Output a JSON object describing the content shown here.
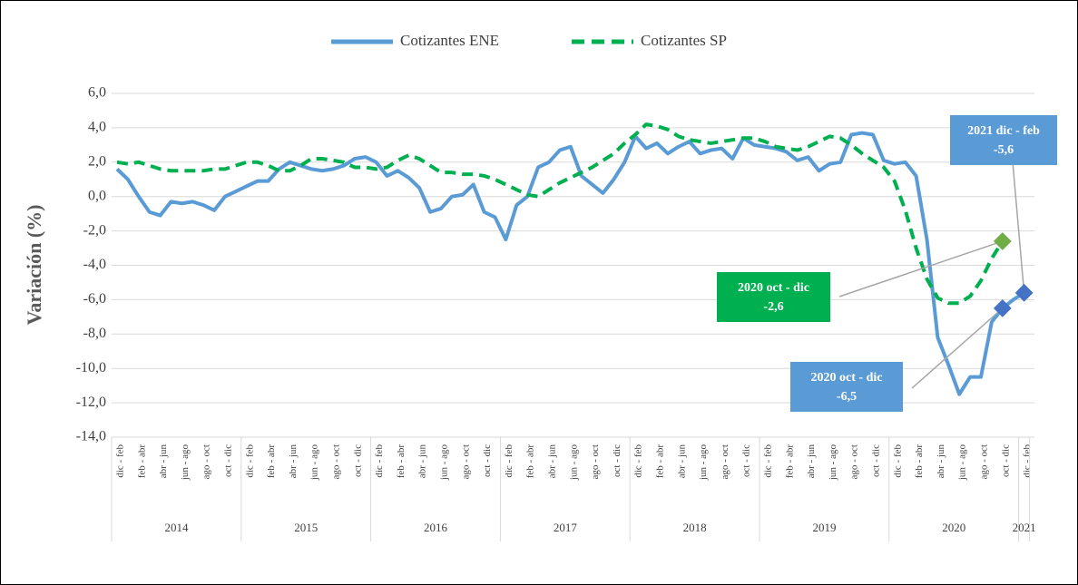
{
  "chart_data": {
    "type": "line",
    "y_label": "Variación (%)",
    "categories": [
      "dic - feb",
      null,
      "feb - abr",
      null,
      "abr - jun",
      null,
      "jun - ago",
      null,
      "ago - oct",
      null,
      "oct - dic",
      null,
      "dic - feb",
      null,
      "feb - abr",
      null,
      "abr - jun",
      null,
      "jun - ago",
      null,
      "ago - oct",
      null,
      "oct - dic",
      null,
      "dic - feb",
      null,
      "feb - abr",
      null,
      "abr - jun",
      null,
      "jun - ago",
      null,
      "ago - oct",
      null,
      "oct - dic",
      null,
      "dic - feb",
      null,
      "feb - abr",
      null,
      "abr - jun",
      null,
      "jun - ago",
      null,
      "ago - oct",
      null,
      "oct - dic",
      null,
      "dic - feb",
      null,
      "feb - abr",
      null,
      "abr - jun",
      null,
      "jun - ago",
      null,
      "ago - oct",
      null,
      "oct - dic",
      null,
      "dic - feb",
      null,
      "feb - abr",
      null,
      "abr - jun",
      null,
      "jun - ago",
      null,
      "ago - oct",
      null,
      "oct - dic",
      null,
      "dic - feb",
      null,
      "feb - abr",
      null,
      "abr - jun",
      null,
      "jun - ago",
      null,
      "ago - oct",
      null,
      "oct - dic",
      null,
      "dic - feb"
    ],
    "x_groups": [
      "2014",
      "2015",
      "2016",
      "2017",
      "2018",
      "2019",
      "2020",
      "2021"
    ],
    "series": [
      {
        "name": "Cotizantes ENE",
        "color": "#5b9bd5",
        "dash": false,
        "values": [
          1.6,
          1.0,
          0.0,
          -0.9,
          -1.1,
          -0.3,
          -0.4,
          -0.3,
          -0.5,
          -0.8,
          0.0,
          0.3,
          0.6,
          0.9,
          0.9,
          1.6,
          2.0,
          1.8,
          1.6,
          1.5,
          1.6,
          1.8,
          2.2,
          2.3,
          2.0,
          1.2,
          1.5,
          1.1,
          0.5,
          -0.9,
          -0.7,
          0.0,
          0.1,
          0.7,
          -0.9,
          -1.2,
          -2.5,
          -0.5,
          0.0,
          1.7,
          2.0,
          2.7,
          2.9,
          1.2,
          0.7,
          0.2,
          1.0,
          2.0,
          3.5,
          2.8,
          3.1,
          2.5,
          2.9,
          3.2,
          2.5,
          2.7,
          2.8,
          2.2,
          3.4,
          3.0,
          2.9,
          2.8,
          2.6,
          2.1,
          2.3,
          1.5,
          1.9,
          2.0,
          3.6,
          3.7,
          3.6,
          2.1,
          1.9,
          2.0,
          1.2,
          -2.5,
          -8.2,
          -9.8,
          -11.5,
          -10.5,
          -10.5,
          -7.3,
          -6.5,
          -6.0,
          -5.6
        ]
      },
      {
        "name": "Cotizantes SP",
        "color": "#00b050",
        "dash": true,
        "values": [
          2.0,
          1.9,
          2.0,
          1.8,
          1.6,
          1.5,
          1.5,
          1.5,
          1.5,
          1.6,
          1.6,
          1.8,
          2.0,
          2.0,
          1.8,
          1.5,
          1.5,
          1.8,
          2.2,
          2.2,
          2.1,
          2.0,
          1.7,
          1.7,
          1.6,
          1.7,
          2.1,
          2.4,
          2.2,
          1.8,
          1.4,
          1.4,
          1.3,
          1.3,
          1.2,
          1.0,
          0.7,
          0.4,
          0.1,
          0.0,
          0.4,
          0.8,
          1.1,
          1.4,
          1.7,
          2.1,
          2.5,
          3.1,
          3.6,
          4.2,
          4.1,
          3.9,
          3.5,
          3.3,
          3.2,
          3.1,
          3.2,
          3.3,
          3.4,
          3.4,
          3.2,
          2.9,
          2.8,
          2.7,
          2.9,
          3.2,
          3.5,
          3.4,
          3.0,
          2.5,
          2.1,
          1.7,
          0.9,
          -0.8,
          -3.0,
          -4.8,
          -5.9,
          -6.2,
          -6.2,
          -5.8,
          -4.9,
          -3.6,
          -2.6,
          null,
          null
        ]
      }
    ],
    "annotations": [
      {
        "title": "2021 dic - feb",
        "value": -5.6,
        "value_label": "-5,6"
      },
      {
        "title": "2020 oct - dic",
        "value": -2.6,
        "value_label": "-2,6"
      },
      {
        "title": "2020 oct - dic",
        "value": -6.5,
        "value_label": "-6,5"
      }
    ],
    "ylim": [
      -14,
      6
    ],
    "yticks": [
      {
        "value": -14,
        "label": "-14,0"
      },
      {
        "value": -12,
        "label": "-12,0"
      },
      {
        "value": -10,
        "label": "-10,0"
      },
      {
        "value": -8,
        "label": "-8,0"
      },
      {
        "value": -6,
        "label": "-6,0"
      },
      {
        "value": -4,
        "label": "-4,0"
      },
      {
        "value": -2,
        "label": "-2,0"
      },
      {
        "value": 0,
        "label": "0,0"
      },
      {
        "value": 2,
        "label": "2,0"
      },
      {
        "value": 4,
        "label": "4,0"
      },
      {
        "value": 6,
        "label": "6,0"
      }
    ],
    "grid": true,
    "legend": "top"
  }
}
